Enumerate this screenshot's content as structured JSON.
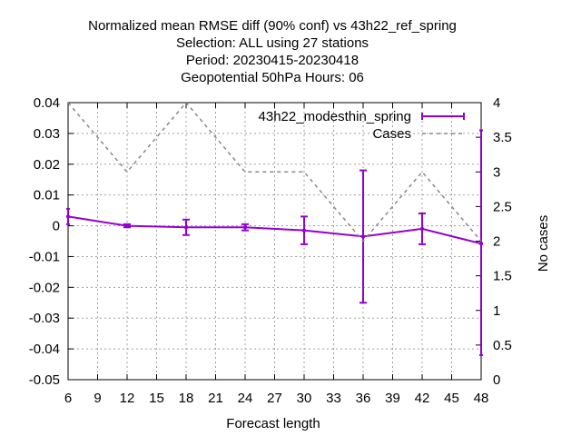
{
  "chart_data": {
    "type": "line",
    "title_lines": [
      "Normalized mean RMSE diff (90% conf) vs 43h22_ref_spring",
      "Selection: ALL using    27 stations",
      "Period: 20230415-20230418",
      "Geopotential 50hPa   Hours:  06"
    ],
    "xlabel": "Forecast length",
    "ylabel_right": "No cases",
    "x_ticks": [
      6,
      9,
      12,
      15,
      18,
      21,
      24,
      27,
      30,
      33,
      36,
      39,
      42,
      45,
      48
    ],
    "y_ticks": [
      "0.04",
      "0.03",
      "0.02",
      "0.01",
      "0",
      "-0.01",
      "-0.02",
      "-0.03",
      "-0.04",
      "-0.05"
    ],
    "y2_ticks": [
      "4",
      "3.5",
      "3",
      "2.5",
      "2",
      "1.5",
      "1",
      "0.5",
      "0"
    ],
    "xlim": [
      6,
      48
    ],
    "ylim": [
      -0.05,
      0.04
    ],
    "y2lim": [
      0,
      4
    ],
    "grid": true,
    "legend_position": "top-right",
    "series": [
      {
        "name": "43h22_modesthin_spring",
        "axis": "left",
        "style": "errorbars",
        "color": "#9400d3",
        "x": [
          6,
          12,
          18,
          24,
          30,
          36,
          42,
          48
        ],
        "y": [
          0.003,
          0.0,
          -0.0005,
          -0.0005,
          -0.0015,
          -0.0035,
          -0.001,
          -0.0058
        ],
        "err_low": [
          0.0005,
          -0.0005,
          -0.003,
          -0.0015,
          -0.006,
          -0.025,
          -0.006,
          -0.042
        ],
        "err_high": [
          0.0055,
          0.0005,
          0.002,
          0.0005,
          0.003,
          0.018,
          0.004,
          0.031
        ]
      },
      {
        "name": "Cases",
        "axis": "right",
        "style": "dashed",
        "color": "#888888",
        "x": [
          6,
          12,
          18,
          24,
          30,
          36,
          42,
          48
        ],
        "y": [
          4,
          3,
          4,
          3,
          3,
          2,
          3,
          2
        ]
      }
    ]
  }
}
